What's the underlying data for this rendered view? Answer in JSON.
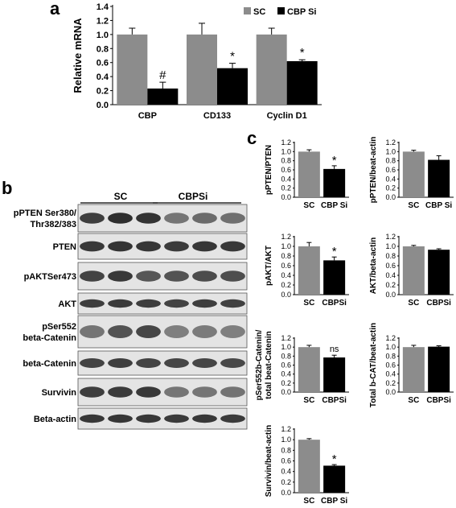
{
  "panels": {
    "a": {
      "letter": "a"
    },
    "b": {
      "letter": "b",
      "group_labels": [
        "SC",
        "CBPSi"
      ],
      "rows": [
        {
          "label": "pPTEN Ser380/\nThr382/383",
          "intensity": [
            0.82,
            0.9,
            0.88,
            0.55,
            0.6,
            0.58
          ]
        },
        {
          "label": "PTEN",
          "intensity": [
            0.85,
            0.88,
            0.86,
            0.84,
            0.86,
            0.85
          ]
        },
        {
          "label": "pAKTSer473",
          "intensity": [
            0.8,
            0.85,
            0.7,
            0.72,
            0.75,
            0.74
          ]
        },
        {
          "label": "AKT",
          "intensity": [
            0.82,
            0.84,
            0.83,
            0.8,
            0.82,
            0.81
          ]
        },
        {
          "label": "pSer552\nbeta-Catenin",
          "intensity": [
            0.55,
            0.72,
            0.78,
            0.5,
            0.52,
            0.5
          ]
        },
        {
          "label": "beta-Catenin",
          "intensity": [
            0.8,
            0.82,
            0.8,
            0.78,
            0.78,
            0.77
          ]
        },
        {
          "label": "Survivin",
          "intensity": [
            0.82,
            0.84,
            0.85,
            0.55,
            0.55,
            0.56
          ]
        },
        {
          "label": "Beta-actin",
          "intensity": [
            0.85,
            0.86,
            0.85,
            0.84,
            0.85,
            0.84
          ]
        }
      ]
    },
    "c": {
      "letter": "c"
    }
  },
  "colors": {
    "sc": "#8c8c8c",
    "si": "#000000",
    "axis": "#000000",
    "band": "#1a1a1a",
    "blot_bg": "#e4e4e4"
  },
  "chart_data": [
    {
      "type": "bar",
      "id": "a",
      "categories": [
        "CBP",
        "CD133",
        "Cyclin D1"
      ],
      "series": [
        {
          "name": "SC",
          "values": [
            1.0,
            1.0,
            1.0
          ],
          "errors": [
            0.09,
            0.16,
            0.09
          ]
        },
        {
          "name": "CBP Si",
          "values": [
            0.23,
            0.52,
            0.62
          ],
          "errors": [
            0.09,
            0.07,
            0.02
          ]
        }
      ],
      "annotations": [
        "#",
        "*",
        "*"
      ],
      "ylabel": "Relative mRNA",
      "ylim": [
        0,
        1.4
      ],
      "yticks": [
        "0.0",
        "0.2",
        "0.4",
        "0.6",
        "0.8",
        "1.0",
        "1.2",
        "1.4"
      ]
    },
    {
      "type": "bar",
      "id": "c1",
      "categories": [
        "SC",
        "CBP Si"
      ],
      "values": [
        1.0,
        0.62
      ],
      "errors": [
        0.04,
        0.07
      ],
      "annotation": "*",
      "ylabel": "pPTEN/PTEN",
      "ylim": [
        0,
        1.2
      ],
      "yticks": [
        "0.0",
        "0.2",
        "0.4",
        "0.6",
        "0.8",
        "1.0",
        "1.2"
      ]
    },
    {
      "type": "bar",
      "id": "c2",
      "categories": [
        "SC",
        "CBP Si"
      ],
      "values": [
        1.0,
        0.82
      ],
      "errors": [
        0.03,
        0.09
      ],
      "annotation": "",
      "ylabel": "pPTEN/beat-actin",
      "ylim": [
        0,
        1.2
      ],
      "yticks": [
        "0.0",
        "0.2",
        "0.4",
        "0.6",
        "0.8",
        "1.0",
        "1.2"
      ]
    },
    {
      "type": "bar",
      "id": "c3",
      "categories": [
        "SC",
        "CBPSi"
      ],
      "values": [
        1.0,
        0.71
      ],
      "errors": [
        0.08,
        0.07
      ],
      "annotation": "*",
      "ylabel": "pAKT/AKT",
      "ylim": [
        0,
        1.2
      ],
      "yticks": [
        "0.0",
        "0.2",
        "0.4",
        "0.6",
        "0.8",
        "1.0",
        "1.2"
      ]
    },
    {
      "type": "bar",
      "id": "c4",
      "categories": [
        "SC",
        "CBPSi"
      ],
      "values": [
        1.0,
        0.93
      ],
      "errors": [
        0.02,
        0.02
      ],
      "annotation": "",
      "ylabel": "AKT/beta-actin",
      "ylim": [
        0,
        1.2
      ],
      "yticks": [
        "0.0",
        "0.2",
        "0.4",
        "0.6",
        "0.8",
        "1.0",
        "1.2"
      ]
    },
    {
      "type": "bar",
      "id": "c5",
      "categories": [
        "SC",
        "CBPSi"
      ],
      "values": [
        1.0,
        0.77
      ],
      "errors": [
        0.04,
        0.05
      ],
      "annotation": "ns",
      "ylabel": "pSer552b-Catenin/\ntotal beat-Catenin",
      "ylim": [
        0,
        1.2
      ],
      "yticks": [
        "0.0",
        "0.2",
        "0.4",
        "0.6",
        "0.8",
        "1.0",
        "1.2"
      ]
    },
    {
      "type": "bar",
      "id": "c6",
      "categories": [
        "SC",
        "CBPSi"
      ],
      "values": [
        1.0,
        1.01
      ],
      "errors": [
        0.04,
        0.02
      ],
      "annotation": "",
      "ylabel": "Total b-CAT/beat-actin",
      "ylim": [
        0,
        1.2
      ],
      "yticks": [
        "0.0",
        "0.2",
        "0.4",
        "0.6",
        "0.8",
        "1.0",
        "1.2"
      ]
    },
    {
      "type": "bar",
      "id": "c7",
      "categories": [
        "SC",
        "CBP Si"
      ],
      "values": [
        1.0,
        0.51
      ],
      "errors": [
        0.02,
        0.02
      ],
      "annotation": "*",
      "ylabel": "Survivin/beat-actin",
      "ylim": [
        0,
        1.2
      ],
      "yticks": [
        "0.0",
        "0.2",
        "0.4",
        "0.6",
        "0.8",
        "1.0",
        "1.2"
      ]
    }
  ]
}
